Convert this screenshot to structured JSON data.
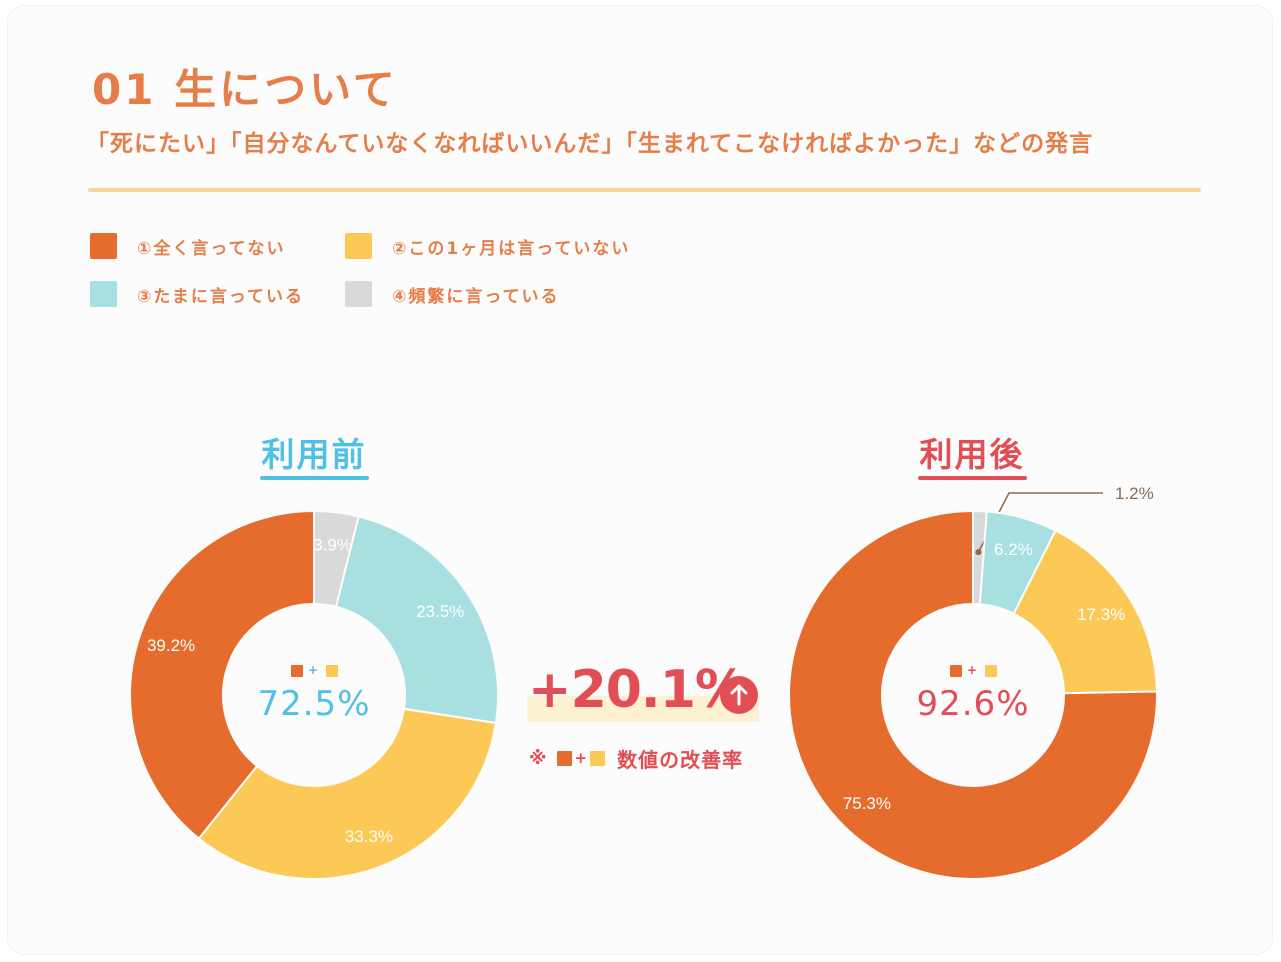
{
  "header": {
    "title": "01 生について",
    "subtitle": "「死にたい」「自分なんていなくなればいいんだ」「生まれてこなければよかった」などの発言"
  },
  "legend": [
    {
      "label": "①全く言ってない",
      "color": "#e56c2c"
    },
    {
      "label": "②この1ヶ月は言っていない",
      "color": "#fcc956"
    },
    {
      "label": "③たまに言っている",
      "color": "#a8dfe1"
    },
    {
      "label": "④頻繁に言っている",
      "color": "#d9d9d9"
    }
  ],
  "panels": {
    "before": {
      "title": "利用前",
      "title_color": "#4fc0e6",
      "center_value": "72.5%",
      "center_color": "#4fc0e6"
    },
    "after": {
      "title": "利用後",
      "title_color": "#e24e56",
      "center_value": "92.6%",
      "center_color": "#e24e56"
    }
  },
  "center_plus": "+",
  "improvement": {
    "value": "+20.1%",
    "note_mark": "※",
    "note_plus": "+",
    "note_text": "数値の改善率"
  },
  "chart_data": [
    {
      "type": "pie",
      "title": "利用前",
      "categories": [
        "①全く言ってない",
        "②この1ヶ月は言っていない",
        "③たまに言っている",
        "④頻繁に言っている"
      ],
      "values": [
        39.2,
        33.3,
        23.5,
        3.9
      ],
      "labels": [
        "39.2%",
        "33.3%",
        "23.5%",
        "3.9%"
      ],
      "colors": [
        "#e56c2c",
        "#fcc956",
        "#a8dfe1",
        "#d9d9d9"
      ]
    },
    {
      "type": "pie",
      "title": "利用後",
      "categories": [
        "①全く言ってない",
        "②この1ヶ月は言っていない",
        "③たまに言っている",
        "④頻繁に言っている"
      ],
      "values": [
        75.3,
        17.3,
        6.2,
        1.2
      ],
      "labels": [
        "75.3%",
        "17.3%",
        "6.2%",
        "1.2%"
      ],
      "colors": [
        "#e56c2c",
        "#fcc956",
        "#a8dfe1",
        "#d9d9d9"
      ]
    }
  ]
}
